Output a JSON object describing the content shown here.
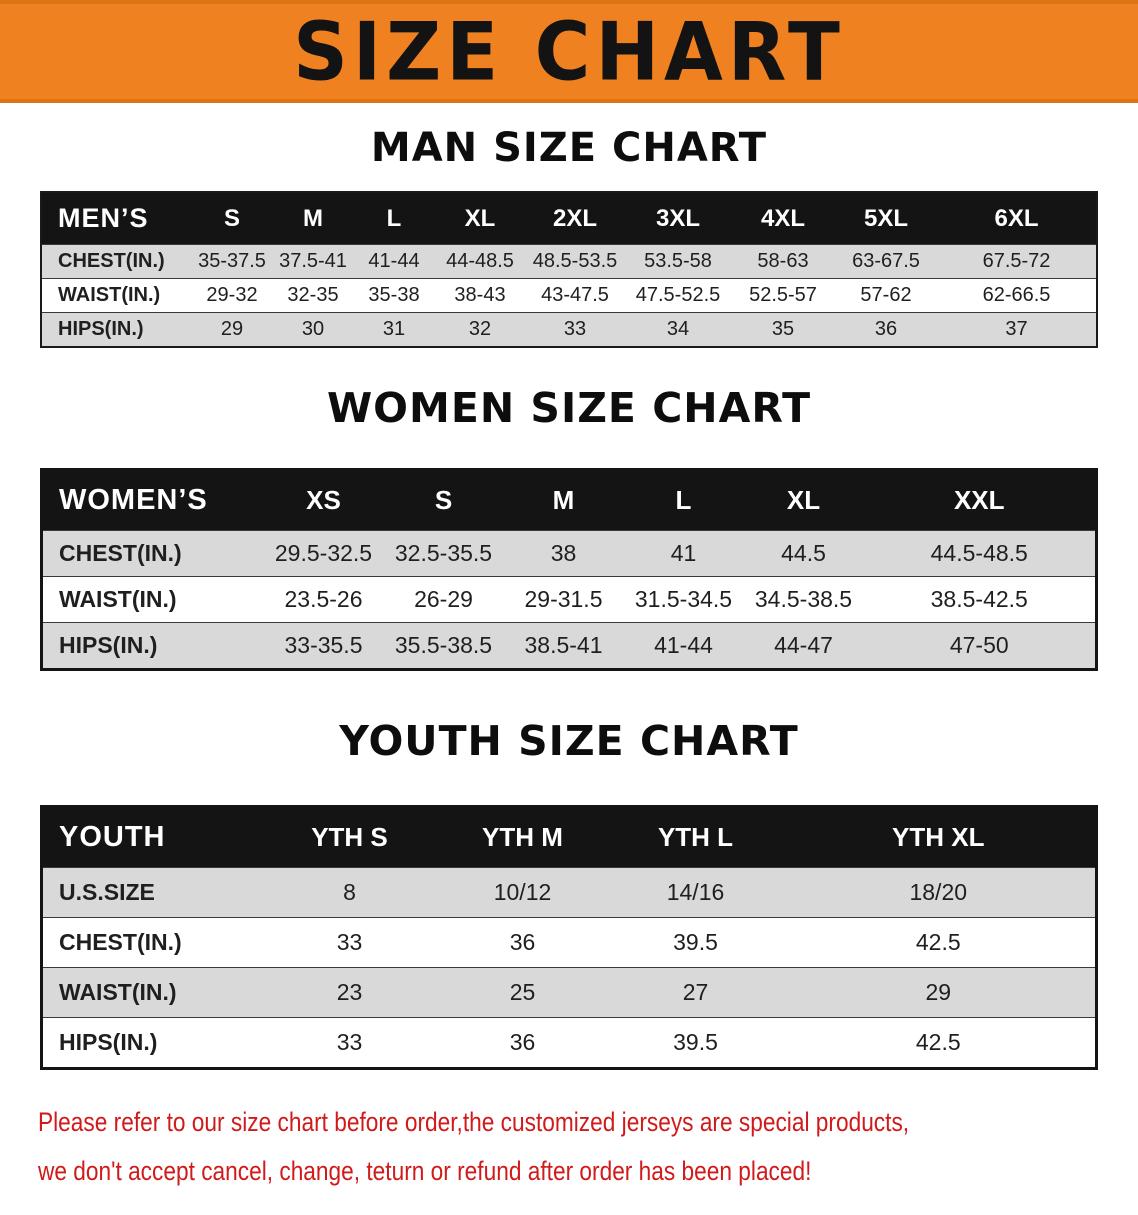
{
  "banner": {
    "title": "SIZE CHART"
  },
  "sections": {
    "men": {
      "heading": "MAN SIZE CHART",
      "table": {
        "header": [
          "MEN’S",
          "S",
          "M",
          "L",
          "XL",
          "2XL",
          "3XL",
          "4XL",
          "5XL",
          "6XL"
        ],
        "rows": [
          [
            "CHEST(IN.)",
            "35-37.5",
            "37.5-41",
            "41-44",
            "44-48.5",
            "48.5-53.5",
            "53.5-58",
            "58-63",
            "63-67.5",
            "67.5-72"
          ],
          [
            "WAIST(IN.)",
            "29-32",
            "32-35",
            "35-38",
            "38-43",
            "43-47.5",
            "47.5-52.5",
            "52.5-57",
            "57-62",
            "62-66.5"
          ],
          [
            "HIPS(IN.)",
            "29",
            "30",
            "31",
            "32",
            "33",
            "34",
            "35",
            "36",
            "37"
          ]
        ]
      }
    },
    "women": {
      "heading": "WOMEN SIZE CHART",
      "table": {
        "header": [
          "WOMEN’S",
          "XS",
          "S",
          "M",
          "L",
          "XL",
          "XXL"
        ],
        "rows": [
          [
            "CHEST(IN.)",
            "29.5-32.5",
            "32.5-35.5",
            "38",
            "41",
            "44.5",
            "44.5-48.5"
          ],
          [
            "WAIST(IN.)",
            "23.5-26",
            "26-29",
            "29-31.5",
            "31.5-34.5",
            "34.5-38.5",
            "38.5-42.5"
          ],
          [
            "HIPS(IN.)",
            "33-35.5",
            "35.5-38.5",
            "38.5-41",
            "41-44",
            "44-47",
            "47-50"
          ]
        ]
      }
    },
    "youth": {
      "heading": "YOUTH SIZE CHART",
      "table": {
        "header": [
          "YOUTH",
          "YTH S",
          "YTH M",
          "YTH L",
          "YTH XL"
        ],
        "rows": [
          [
            "U.S.SIZE",
            "8",
            "10/12",
            "14/16",
            "18/20"
          ],
          [
            "CHEST(IN.)",
            "33",
            "36",
            "39.5",
            "42.5"
          ],
          [
            "WAIST(IN.)",
            "23",
            "25",
            "27",
            "29"
          ],
          [
            "HIPS(IN.)",
            "33",
            "36",
            "39.5",
            "42.5"
          ]
        ]
      }
    }
  },
  "footer": {
    "line1": "Please refer to our size chart before order,the customized jerseys are special products,",
    "line2": "we don't accept cancel, change, teturn or refund after order has been placed!"
  },
  "colors": {
    "banner_orange": "#f08121",
    "table_header_black": "#141414",
    "row_gray": "#d9d9d9",
    "note_red": "#d11a1a"
  }
}
